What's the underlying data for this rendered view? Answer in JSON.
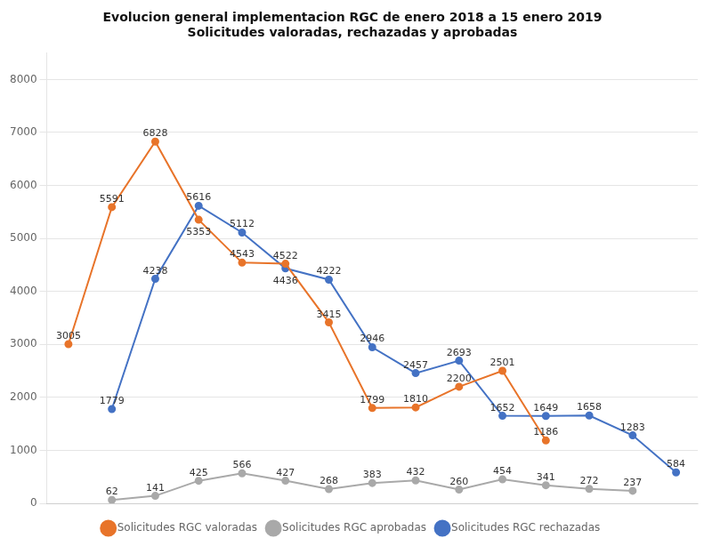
{
  "chart_data": {
    "type": "line",
    "title": "Evolucion general implementacion RGC de enero 2018 a 15 enero 2019\nSolicitudes valoradas, rechazadas y aprobadas",
    "series": [
      {
        "name": "Solicitudes RGC valoradas",
        "color": "#E8742A",
        "marker": "circle",
        "x": [
          0,
          1,
          2,
          3,
          4,
          5,
          6,
          7,
          8,
          9,
          10,
          11
        ],
        "values": [
          3005,
          5591,
          6828,
          5353,
          4543,
          4522,
          3415,
          1799,
          1810,
          2200,
          2501,
          1186
        ]
      },
      {
        "name": "Solicitudes RGC aprobadas",
        "color": "#A9A9A9",
        "marker": "circle",
        "x": [
          1,
          2,
          3,
          4,
          5,
          6,
          7,
          8,
          9,
          10,
          11,
          12,
          13
        ],
        "values": [
          62,
          141,
          425,
          566,
          427,
          268,
          383,
          432,
          260,
          454,
          341,
          272,
          237
        ]
      },
      {
        "name": "Solicitudes RGC rechazadas",
        "color": "#4472C4",
        "marker": "circle",
        "x": [
          1,
          2,
          3,
          4,
          5,
          6,
          7,
          8,
          9,
          10,
          11,
          12,
          13,
          14
        ],
        "values": [
          1779,
          4238,
          5616,
          5112,
          4436,
          4222,
          2946,
          2457,
          2693,
          1652,
          1649,
          1658,
          1283,
          584
        ]
      }
    ],
    "xlim": [
      -0.5,
      14.5
    ],
    "xticks": [],
    "ylim": [
      0,
      8500
    ],
    "yticks": [
      0,
      1000,
      2000,
      3000,
      4000,
      5000,
      6000,
      7000,
      8000
    ],
    "grid": "y",
    "legend": "bottom",
    "data_labels": true,
    "tick_labels": "y"
  }
}
